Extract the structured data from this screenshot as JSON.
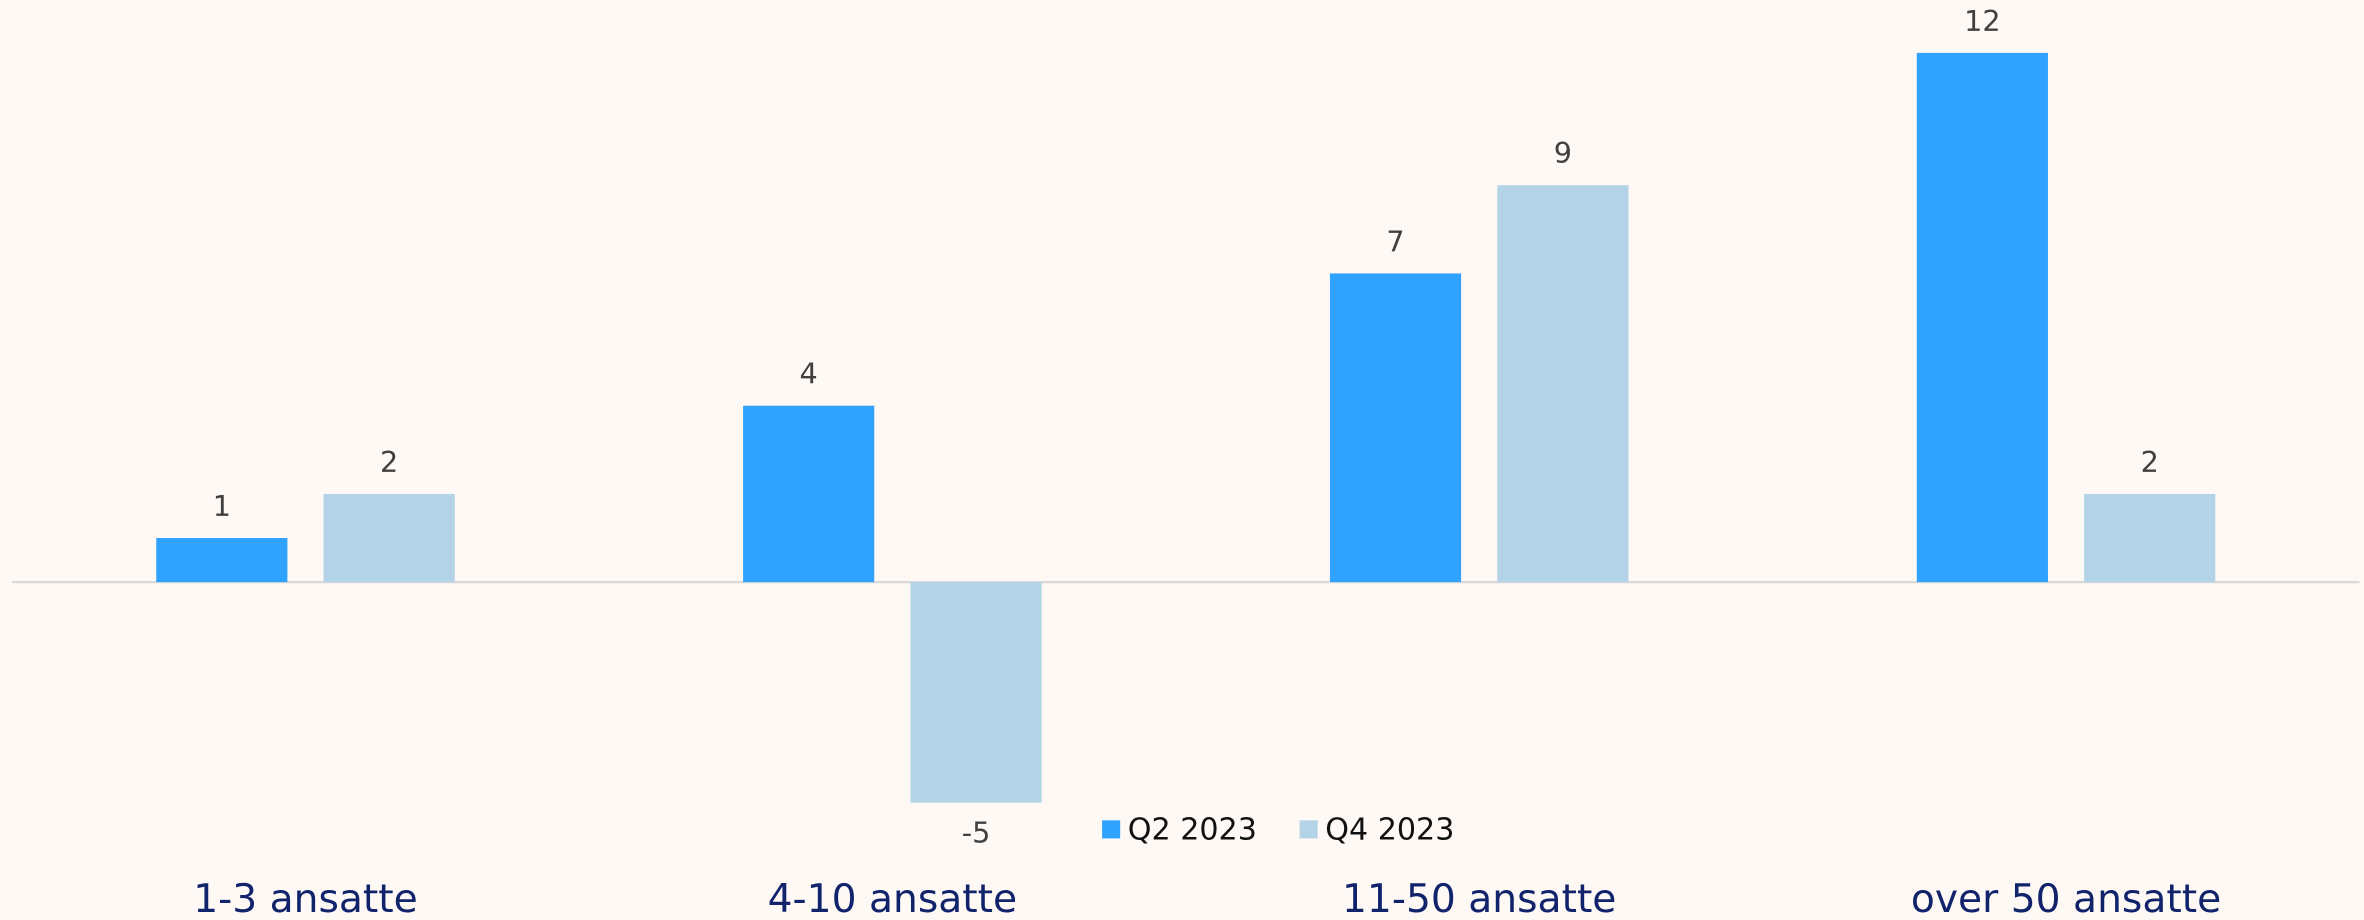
{
  "chart_data": {
    "type": "bar",
    "categories": [
      "1-3 ansatte",
      "4-10 ansatte",
      "11-50 ansatte",
      "over 50 ansatte"
    ],
    "series": [
      {
        "name": "Q2 2023",
        "color": "#30a2ff",
        "values": [
          1,
          4,
          7,
          12
        ]
      },
      {
        "name": "Q4 2023",
        "color": "#b3d3e6",
        "values": [
          2,
          -5,
          9,
          2
        ]
      }
    ],
    "legend": "bottom"
  }
}
